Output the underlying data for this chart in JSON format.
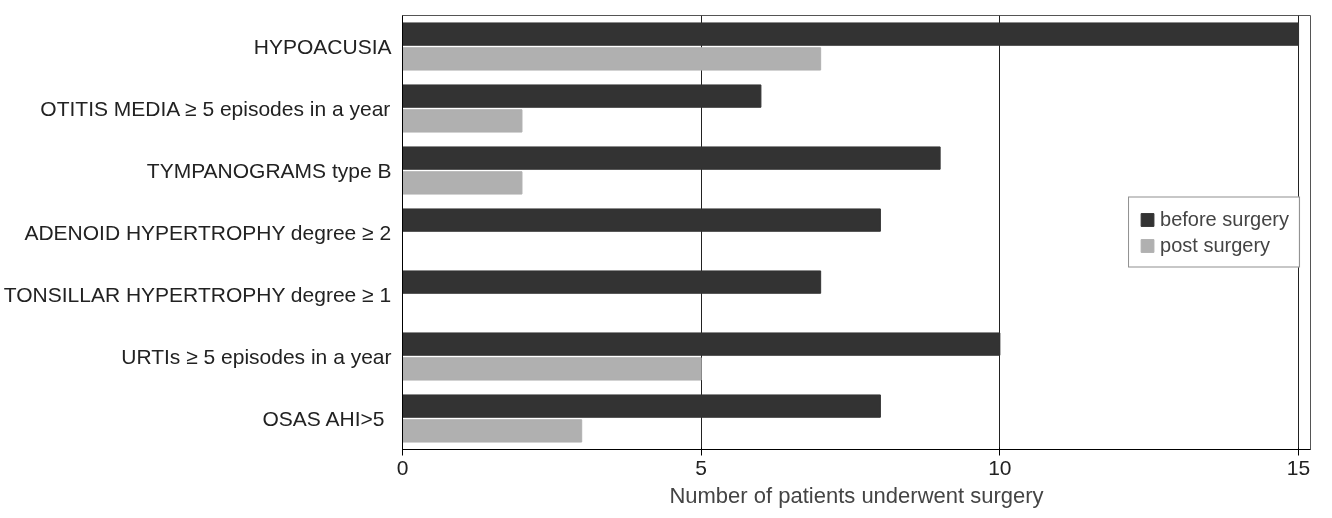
{
  "chart_data": {
    "type": "bar",
    "orientation": "horizontal",
    "xlabel": "Number of patients underwent surgery",
    "categories": [
      "HYPOACUSIA",
      "OTITIS MEDIA ≥ 5 episodes in a year",
      "TYMPANOGRAMS type B",
      "ADENOID HYPERTROPHY degree ≥ 2",
      "TONSILLAR HYPERTROPHY degree ≥ 1",
      "URTIs ≥ 5 episodes in a year",
      "OSAS  AHI>5"
    ],
    "series": [
      {
        "name": "before surgery",
        "color": "#333333",
        "values": [
          15,
          6,
          9,
          8,
          7,
          10,
          8
        ]
      },
      {
        "name": "post surgery",
        "color": "#b0b0b0",
        "values": [
          7,
          2,
          2,
          0,
          0,
          5,
          3
        ]
      }
    ],
    "xlim": [
      0,
      15.2
    ],
    "xticks": [
      0,
      5,
      10,
      15
    ],
    "grid": "x",
    "legend": "right"
  }
}
